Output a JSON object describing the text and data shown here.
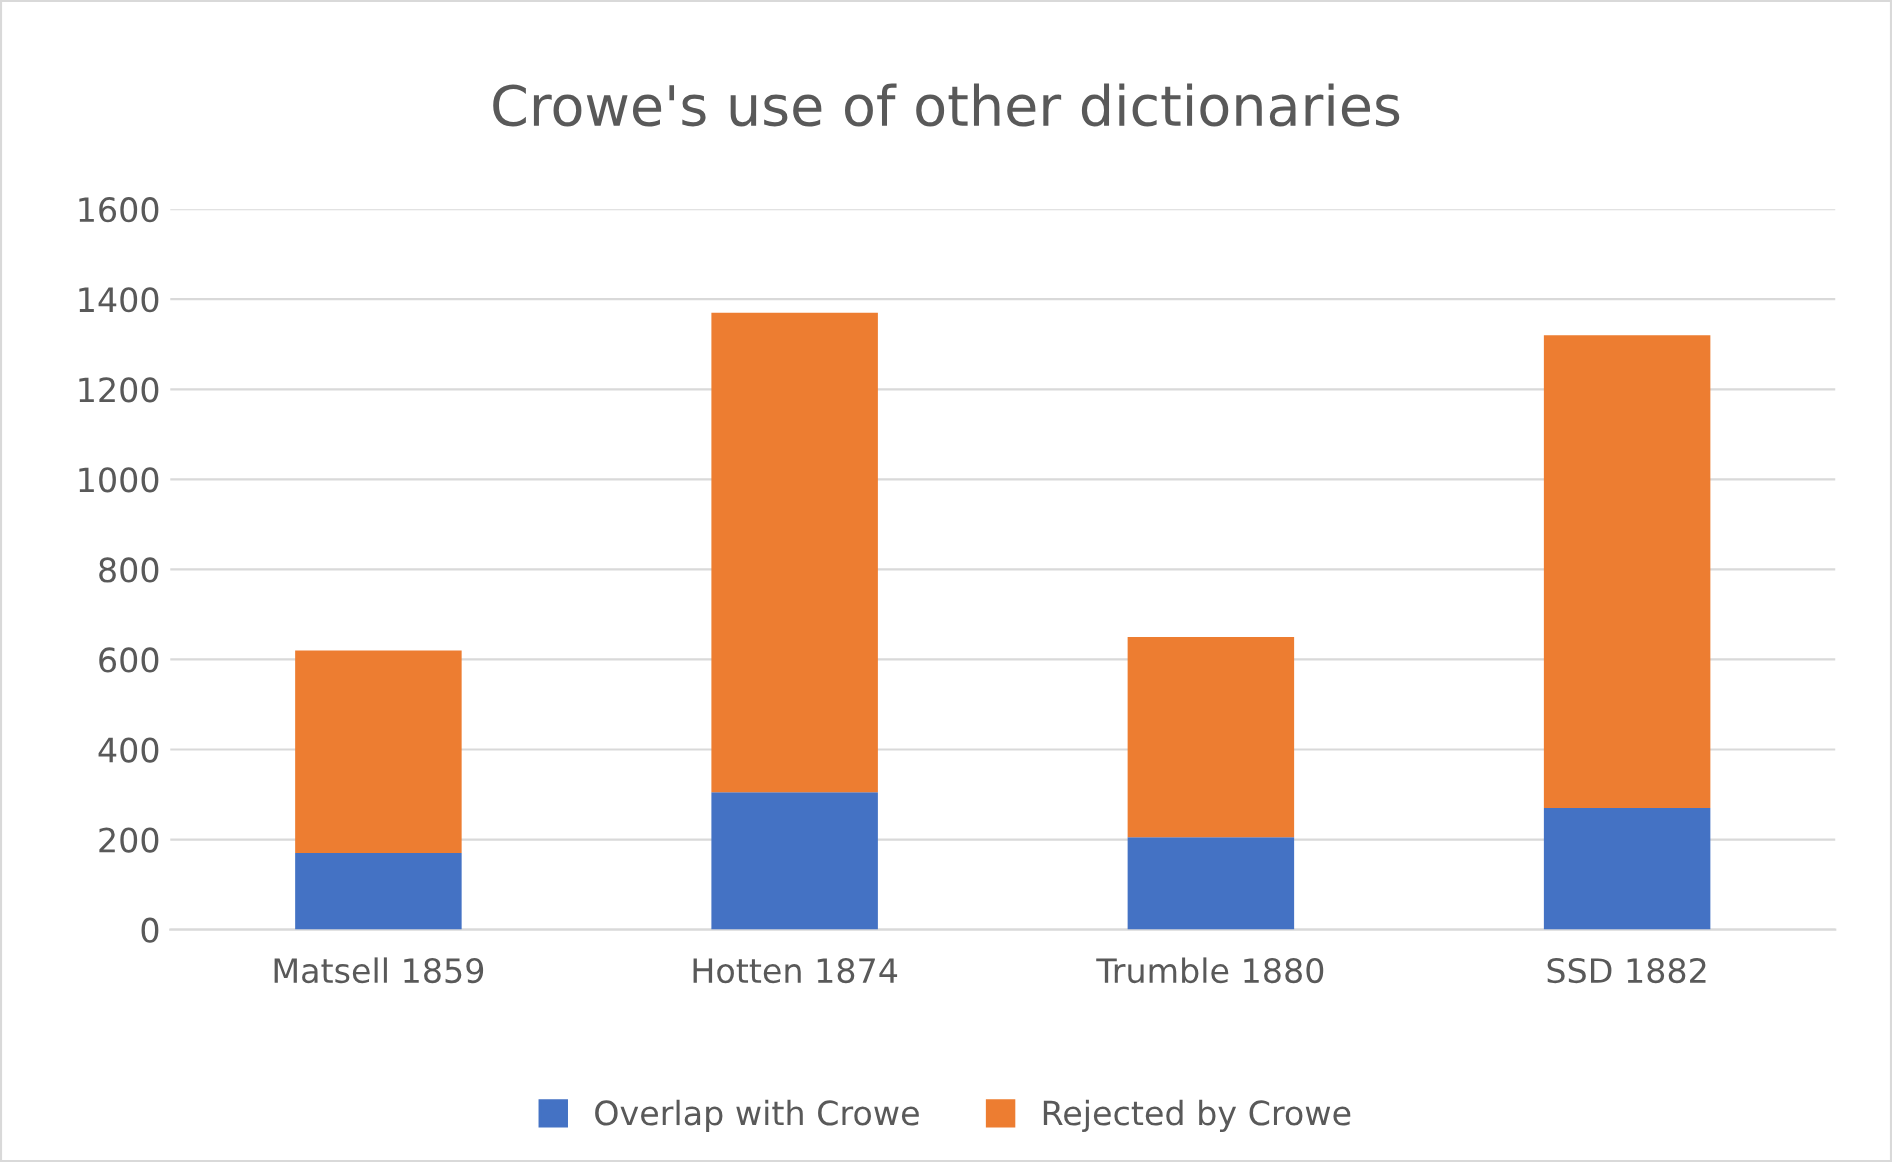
{
  "chart_data": {
    "type": "bar",
    "title": "Crowe's use of other dictionaries",
    "categories": [
      "Matsell 1859",
      "Hotten 1874",
      "Trumble 1880",
      "SSD 1882"
    ],
    "stacked": true,
    "series": [
      {
        "name": "Overlap with Crowe",
        "color": "#4472c4",
        "values": [
          170,
          305,
          205,
          270
        ]
      },
      {
        "name": "Rejected by Crowe",
        "color": "#ed7d31",
        "values": [
          450,
          1065,
          445,
          1050
        ]
      }
    ],
    "ylim": [
      0,
      1600
    ],
    "yticks": [
      0,
      200,
      400,
      600,
      800,
      1000,
      1200,
      1400,
      1600
    ],
    "grid": "y",
    "legend": "bottom"
  }
}
